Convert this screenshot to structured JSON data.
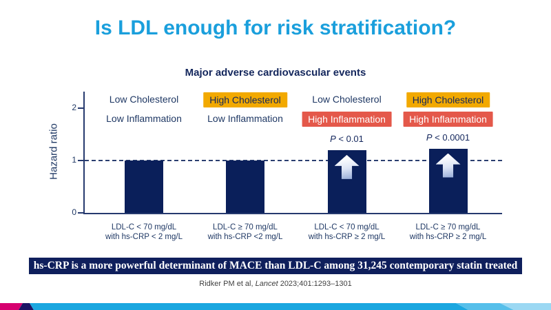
{
  "slide": {
    "title": "Is LDL enough for risk stratification?"
  },
  "chart_data": {
    "type": "bar",
    "title": "Major adverse cardiovascular events",
    "xlabel": "",
    "ylabel": "Hazard ratio",
    "yticks": [
      0,
      1,
      2
    ],
    "ylim": [
      0,
      2.3
    ],
    "reference_line": 1,
    "grid": false,
    "legend": false,
    "bar_color": "#0A1F5A",
    "values": [
      1.0,
      1.0,
      1.2,
      1.23
    ],
    "categories": [
      "LDL-C < 70 mg/dL with hs-CRP < 2 mg/L",
      "LDL-C ≥ 70 mg/dL with hs-CRP <2 mg/L",
      "LDL-C < 70 mg/dL with hs-CRP ≥ 2 mg/L",
      "LDL-C ≥ 70 mg/dL with hs-CRP ≥ 2 mg/L"
    ],
    "groups": [
      {
        "cholesterol_label": "Low Cholesterol",
        "cholesterol_highlight": "none",
        "inflammation_label": "Low Inflammation",
        "inflammation_highlight": "none",
        "p_prefix": "",
        "p_value": "",
        "arrow": false,
        "x_label_line1": "LDL-C < 70 mg/dL",
        "x_label_line2": "with hs-CRP < 2 mg/L"
      },
      {
        "cholesterol_label": "High Cholesterol",
        "cholesterol_highlight": "orange",
        "inflammation_label": "Low Inflammation",
        "inflammation_highlight": "none",
        "p_prefix": "",
        "p_value": "",
        "arrow": false,
        "x_label_line1": "LDL-C ≥ 70 mg/dL",
        "x_label_line2": "with hs-CRP <2 mg/L"
      },
      {
        "cholesterol_label": "Low Cholesterol",
        "cholesterol_highlight": "none",
        "inflammation_label": "High Inflammation",
        "inflammation_highlight": "red",
        "p_prefix": "P",
        "p_value": "< 0.01",
        "arrow": true,
        "x_label_line1": "LDL-C < 70 mg/dL",
        "x_label_line2": "with hs-CRP ≥ 2 mg/L"
      },
      {
        "cholesterol_label": "High Cholesterol",
        "cholesterol_highlight": "orange",
        "inflammation_label": "High Inflammation",
        "inflammation_highlight": "red",
        "p_prefix": "P",
        "p_value": "< 0.0001",
        "arrow": true,
        "x_label_line1": "LDL-C ≥ 70 mg/dL",
        "x_label_line2": "with hs-CRP ≥ 2 mg/L"
      }
    ]
  },
  "banner": {
    "text": "hs-CRP is a more powerful determinant of MACE than LDL-C among 31,245 contemporary statin treated"
  },
  "citation": {
    "prefix": "Ridker PM et al, ",
    "journal": "Lancet",
    "suffix": " 2023;401:1293–1301"
  },
  "colors": {
    "title_blue": "#1A9FDC",
    "bar_navy": "#0A1F5A",
    "text_navy": "#1F3864",
    "chip_orange": "#F2A900",
    "chip_red": "#E4584A",
    "banner_navy": "#0F1F5C",
    "stripe": [
      "#D6006F",
      "#1B1464",
      "#1BA7E0",
      "#56BFEA",
      "#9BD8F3"
    ]
  }
}
